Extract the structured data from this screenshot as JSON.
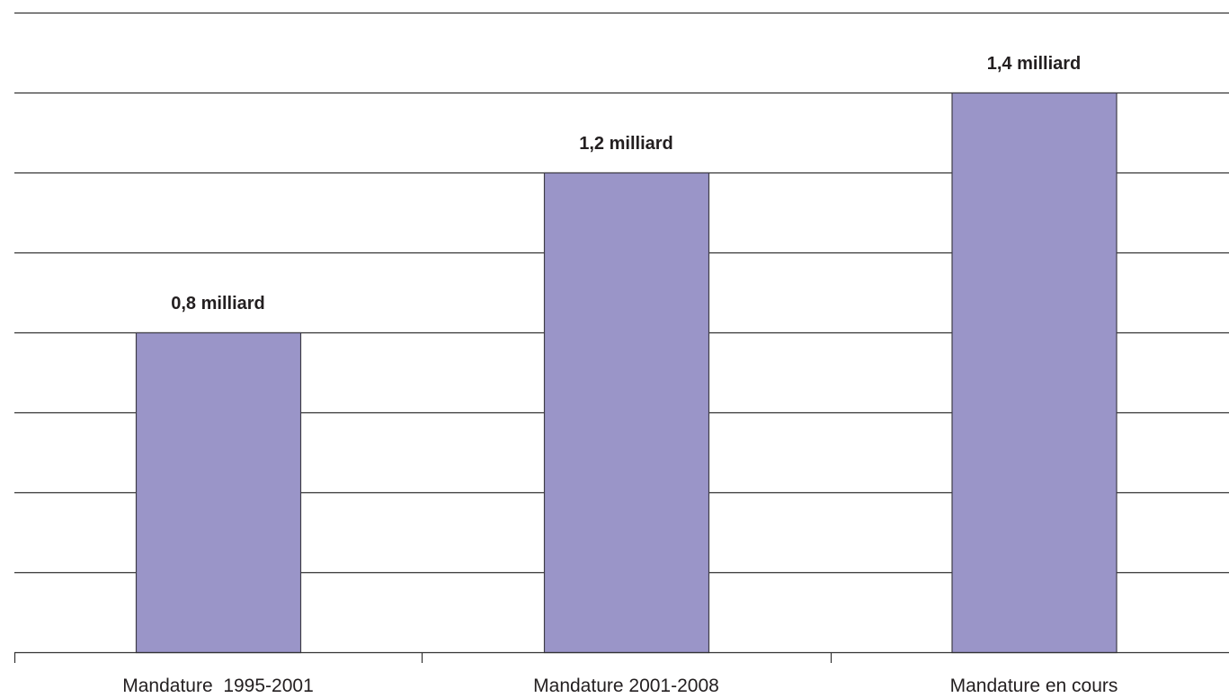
{
  "chart_data": {
    "type": "bar",
    "categories": [
      "Mandature  1995-2001",
      "Mandature 2001-2008",
      "Mandature en cours"
    ],
    "values": [
      0.8,
      1.2,
      1.4
    ],
    "data_labels": [
      "0,8 milliard",
      "1,2 milliard",
      "1,4 milliard"
    ],
    "title": "",
    "xlabel": "",
    "ylabel": "",
    "ylim": [
      0,
      1.6
    ],
    "grid": true,
    "gridline_step": 0.2,
    "legend": "none",
    "colors": {
      "bar": "#9a95c8",
      "bar_outline": "#3f3d48",
      "grid": "#333333",
      "text": "#231f20"
    }
  }
}
